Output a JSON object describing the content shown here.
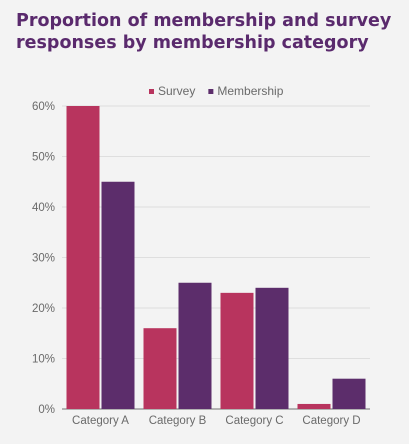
{
  "chart_data": {
    "type": "bar",
    "title": "Proportion of membership and survey responses by membership category",
    "categories": [
      "Category A",
      "Category B",
      "Category C",
      "Category D"
    ],
    "series": [
      {
        "name": "Survey",
        "values": [
          60,
          16,
          23,
          1
        ],
        "color": "#b8345e"
      },
      {
        "name": "Membership",
        "values": [
          45,
          25,
          24,
          6
        ],
        "color": "#5c2d6b"
      }
    ],
    "ylim": [
      0,
      60
    ],
    "yticks": [
      0,
      10,
      20,
      30,
      40,
      50,
      60
    ],
    "ytick_format": "{v}%",
    "grid": true,
    "legend_position": "top-right",
    "xlabel": "",
    "ylabel": ""
  }
}
